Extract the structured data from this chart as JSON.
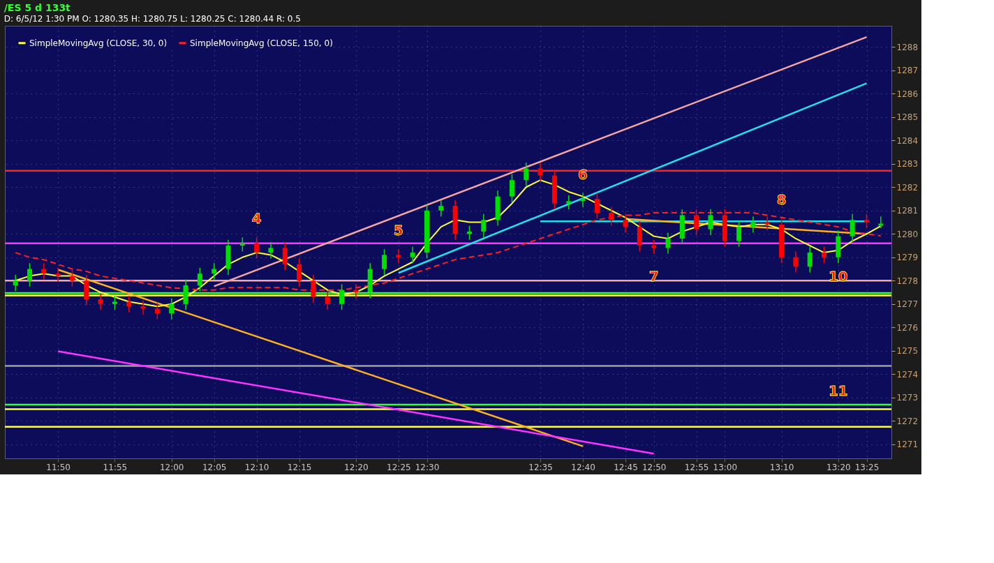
{
  "chart_data": {
    "type": "candlestick",
    "title": "/ES 5 d 133t",
    "subtitle": "D: 6/5/12 1:30 PM   O: 1280.35   H: 1280.75   L: 1280.25   C: 1280.44   R: 0.5",
    "categories": [
      null,
      null,
      null,
      "11:50",
      null,
      null,
      null,
      "11:55",
      null,
      null,
      null,
      "12:00",
      null,
      null,
      "12:05",
      null,
      null,
      "12:10",
      null,
      null,
      "12:15",
      null,
      null,
      null,
      "12:20",
      null,
      null,
      "12:25",
      null,
      "12:30",
      null,
      null,
      null,
      null,
      null,
      null,
      null,
      "12:35",
      null,
      null,
      "12:40",
      null,
      null,
      "12:45",
      null,
      "12:50",
      null,
      null,
      "12:55",
      null,
      "13:00",
      null,
      null,
      null,
      "13:10",
      null,
      null,
      null,
      "13:20",
      null,
      "13:25",
      null
    ],
    "ohlc": [
      [
        1277.8,
        1278.25,
        1277.55,
        1278.0
      ],
      [
        1278.0,
        1278.75,
        1277.75,
        1278.5
      ],
      [
        1278.5,
        1278.75,
        1278.05,
        1278.3
      ],
      [
        1278.3,
        1278.55,
        1277.95,
        1278.2
      ],
      [
        1278.2,
        1278.45,
        1277.75,
        1278.0
      ],
      [
        1278.0,
        1278.25,
        1276.95,
        1277.2
      ],
      [
        1277.2,
        1277.45,
        1276.75,
        1277.0
      ],
      [
        1277.0,
        1277.35,
        1276.75,
        1277.1
      ],
      [
        1277.1,
        1277.35,
        1276.65,
        1276.9
      ],
      [
        1276.9,
        1277.15,
        1276.55,
        1276.8
      ],
      [
        1276.8,
        1277.05,
        1276.35,
        1276.6
      ],
      [
        1276.6,
        1277.25,
        1276.35,
        1277.0
      ],
      [
        1277.0,
        1278.05,
        1276.75,
        1277.8
      ],
      [
        1277.8,
        1278.55,
        1277.55,
        1278.3
      ],
      [
        1278.3,
        1278.75,
        1278.05,
        1278.5
      ],
      [
        1278.5,
        1279.75,
        1278.25,
        1279.5
      ],
      [
        1279.5,
        1279.85,
        1279.25,
        1279.6
      ],
      [
        1279.6,
        1279.85,
        1278.95,
        1279.2
      ],
      [
        1279.2,
        1279.65,
        1278.95,
        1279.4
      ],
      [
        1279.4,
        1279.65,
        1278.45,
        1278.7
      ],
      [
        1278.7,
        1278.95,
        1277.75,
        1278.0
      ],
      [
        1278.0,
        1278.25,
        1277.05,
        1277.3
      ],
      [
        1277.3,
        1277.55,
        1276.75,
        1277.0
      ],
      [
        1277.0,
        1277.85,
        1276.75,
        1277.6
      ],
      [
        1277.6,
        1277.85,
        1277.25,
        1277.5
      ],
      [
        1277.5,
        1278.75,
        1277.25,
        1278.5
      ],
      [
        1278.5,
        1279.35,
        1278.25,
        1279.1
      ],
      [
        1279.1,
        1279.35,
        1278.75,
        1279.0
      ],
      [
        1279.0,
        1279.45,
        1278.75,
        1279.2
      ],
      [
        1279.2,
        1281.25,
        1278.95,
        1281.0
      ],
      [
        1281.0,
        1281.45,
        1280.75,
        1281.2
      ],
      [
        1281.2,
        1281.45,
        1279.75,
        1280.0
      ],
      [
        1280.0,
        1280.35,
        1279.75,
        1280.1
      ],
      [
        1280.1,
        1280.85,
        1279.85,
        1280.6
      ],
      [
        1280.6,
        1281.85,
        1280.35,
        1281.6
      ],
      [
        1281.6,
        1282.55,
        1281.35,
        1282.3
      ],
      [
        1282.3,
        1283.05,
        1282.05,
        1282.8
      ],
      [
        1282.8,
        1283.05,
        1282.25,
        1282.5
      ],
      [
        1282.5,
        1282.75,
        1281.05,
        1281.3
      ],
      [
        1281.3,
        1281.65,
        1281.05,
        1281.4
      ],
      [
        1281.4,
        1281.75,
        1281.15,
        1281.5
      ],
      [
        1281.5,
        1281.75,
        1280.65,
        1280.9
      ],
      [
        1280.9,
        1281.15,
        1280.35,
        1280.6
      ],
      [
        1280.6,
        1280.85,
        1280.05,
        1280.3
      ],
      [
        1280.3,
        1280.55,
        1279.25,
        1279.5
      ],
      [
        1279.5,
        1279.75,
        1279.15,
        1279.4
      ],
      [
        1279.4,
        1280.05,
        1279.15,
        1279.8
      ],
      [
        1279.8,
        1281.05,
        1279.55,
        1280.8
      ],
      [
        1280.8,
        1281.05,
        1279.95,
        1280.2
      ],
      [
        1280.2,
        1281.05,
        1279.95,
        1280.8
      ],
      [
        1280.8,
        1281.05,
        1279.45,
        1279.7
      ],
      [
        1279.7,
        1280.55,
        1279.45,
        1280.3
      ],
      [
        1280.3,
        1280.75,
        1280.05,
        1280.5
      ],
      [
        1280.5,
        1280.75,
        1280.15,
        1280.4
      ],
      [
        1280.4,
        1280.65,
        1278.75,
        1279.0
      ],
      [
        1279.0,
        1279.25,
        1278.35,
        1278.6
      ],
      [
        1278.6,
        1279.45,
        1278.35,
        1279.2
      ],
      [
        1279.2,
        1279.45,
        1278.75,
        1279.0
      ],
      [
        1279.0,
        1280.15,
        1278.75,
        1279.9
      ],
      [
        1279.9,
        1280.85,
        1279.65,
        1280.6
      ],
      [
        1280.6,
        1280.85,
        1280.25,
        1280.5
      ],
      [
        1280.35,
        1280.75,
        1280.25,
        1280.44
      ]
    ],
    "colors": [
      "#00e000",
      "#00e000",
      "#ff0000",
      "#ff0000",
      "#ff0000",
      "#ff0000",
      "#ff0000",
      "#00e000",
      "#ff0000",
      "#ff0000",
      "#ff0000",
      "#00e000",
      "#00e000",
      "#00e000",
      "#00e000",
      "#00e000",
      "#00e000",
      "#ff0000",
      "#00e000",
      "#ff0000",
      "#ff0000",
      "#ff0000",
      "#ff0000",
      "#00e000",
      "#ff0000",
      "#00e000",
      "#00e000",
      "#ff0000",
      "#00e000",
      "#00e000",
      "#00e000",
      "#ff0000",
      "#00e000",
      "#00e000",
      "#00e000",
      "#00e000",
      "#00e000",
      "#ff0000",
      "#ff0000",
      "#00e000",
      "#00e000",
      "#ff0000",
      "#ff0000",
      "#ff0000",
      "#ff0000",
      "#ff0000",
      "#00e000",
      "#00e000",
      "#ff0000",
      "#00e000",
      "#ff0000",
      "#00e000",
      "#00e000",
      "#ff0000",
      "#ff0000",
      "#ff0000",
      "#00e000",
      "#ff0000",
      "#00e000",
      "#00e000",
      "#ff0000",
      "#00e000"
    ],
    "series": [
      {
        "name": "SimpleMovingAvg (CLOSE, 30, 0)",
        "type": "line",
        "color": "#ffff33",
        "line_style": "solid",
        "values": [
          1278.0,
          1278.2,
          1278.3,
          1278.2,
          1278.2,
          1277.8,
          1277.5,
          1277.3,
          1277.1,
          1277.0,
          1276.9,
          1277.0,
          1277.3,
          1277.7,
          1278.2,
          1278.7,
          1279.0,
          1279.2,
          1279.1,
          1278.8,
          1278.4,
          1278.0,
          1277.6,
          1277.4,
          1277.5,
          1277.8,
          1278.2,
          1278.5,
          1278.8,
          1279.6,
          1280.3,
          1280.6,
          1280.5,
          1280.5,
          1280.7,
          1281.3,
          1282.0,
          1282.3,
          1282.1,
          1281.8,
          1281.6,
          1281.3,
          1281.0,
          1280.7,
          1280.3,
          1279.9,
          1279.8,
          1280.1,
          1280.3,
          1280.5,
          1280.4,
          1280.3,
          1280.4,
          1280.4,
          1280.2,
          1279.8,
          1279.5,
          1279.2,
          1279.3,
          1279.7,
          1280.0,
          1280.34
        ]
      },
      {
        "name": "SimpleMovingAvg (CLOSE, 150, 0)",
        "type": "line",
        "color": "#ff2020",
        "line_style": "dashed",
        "values": [
          1279.2,
          1279.0,
          1278.9,
          1278.7,
          1278.5,
          1278.4,
          1278.2,
          1278.1,
          1278.0,
          1277.9,
          1277.8,
          1277.7,
          null,
          1277.6,
          1277.6,
          1277.7,
          1277.7,
          1277.7,
          1277.7,
          1277.7,
          1277.6,
          1277.6,
          1277.6,
          1277.6,
          1277.7,
          null,
          1277.9,
          1278.1,
          1278.3,
          1278.5,
          1278.7,
          1278.9,
          1279.0,
          1279.1,
          1279.2,
          1279.4,
          1279.6,
          1279.8,
          1280.0,
          1280.2,
          1280.4,
          1280.6,
          1280.7,
          1280.8,
          1280.8,
          1280.9,
          1280.9,
          1280.9,
          1280.9,
          1280.9,
          1280.9,
          1280.9,
          1280.9,
          1280.8,
          1280.7,
          1280.6,
          1280.5,
          1280.4,
          1280.3,
          1280.1,
          1280.0,
          1279.92
        ]
      },
      {
        "type": "line",
        "color": "#f4a6a0",
        "line_style": "solid",
        "x": [
          "12:05",
          "13:25"
        ],
        "values": [
          1277.76,
          1288.42
        ]
      },
      {
        "type": "line",
        "color": "#22e0e8",
        "line_style": "solid",
        "x": [
          "12:25",
          "13:25"
        ],
        "values": [
          1278.33,
          1286.44
        ]
      },
      {
        "type": "line",
        "color": "#22e0e8",
        "line_style": "solid",
        "x": [
          "12:35",
          "13:25"
        ],
        "values": [
          1280.54,
          1280.54
        ]
      },
      {
        "type": "line",
        "color": "#ffb020",
        "line_style": "solid",
        "x": [
          "11:50",
          "12:40"
        ],
        "values": [
          1278.47,
          1270.92
        ]
      },
      {
        "type": "line",
        "color": "#ffb020",
        "line_style": "solid",
        "x": [
          "12:45",
          "13:25"
        ],
        "values": [
          1280.64,
          1280.0
        ]
      },
      {
        "type": "line",
        "color": "#ff33ff",
        "line_style": "solid",
        "x": [
          "11:50",
          "12:50"
        ],
        "values": [
          1274.98,
          1270.6
        ]
      }
    ],
    "ref_lines": [
      {
        "axis": "y",
        "value": 1282.7,
        "color": "#ff2020"
      },
      {
        "axis": "y",
        "value": 1279.6,
        "color": "#ff33ff"
      },
      {
        "axis": "y",
        "value": 1278.0,
        "color": "#f4a6a0"
      },
      {
        "axis": "y",
        "value": 1277.47,
        "color": "#33ff33"
      },
      {
        "axis": "y",
        "value": 1277.37,
        "color": "#ffff33"
      },
      {
        "axis": "y",
        "value": 1274.35,
        "color": "#a0a0a0"
      },
      {
        "axis": "y",
        "value": 1272.7,
        "color": "#33ff33"
      },
      {
        "axis": "y",
        "value": 1272.5,
        "color": "#ffff33"
      },
      {
        "axis": "y",
        "value": 1271.75,
        "color": "#ffff33"
      }
    ],
    "annotations": [
      {
        "text": "4",
        "x": "12:10",
        "y": 1279.85
      },
      {
        "text": "5",
        "x": "12:25",
        "y": 1279.35
      },
      {
        "text": "6",
        "x": "12:40",
        "y": 1281.75
      },
      {
        "text": "7",
        "x": "12:50",
        "y": 1277.37
      },
      {
        "text": "8",
        "x": "13:10",
        "y": 1280.65
      },
      {
        "text": "10",
        "x": "13:20",
        "y": 1277.37
      },
      {
        "text": "11",
        "x": "13:20",
        "y": 1272.5
      }
    ],
    "ylim": [
      1270.4,
      1288.9
    ],
    "yticks": [
      1271,
      1272,
      1273,
      1274,
      1275,
      1276,
      1277,
      1278,
      1279,
      1280,
      1281,
      1282,
      1283,
      1284,
      1285,
      1286,
      1287,
      1288
    ],
    "grid": true,
    "legend": "top left"
  }
}
